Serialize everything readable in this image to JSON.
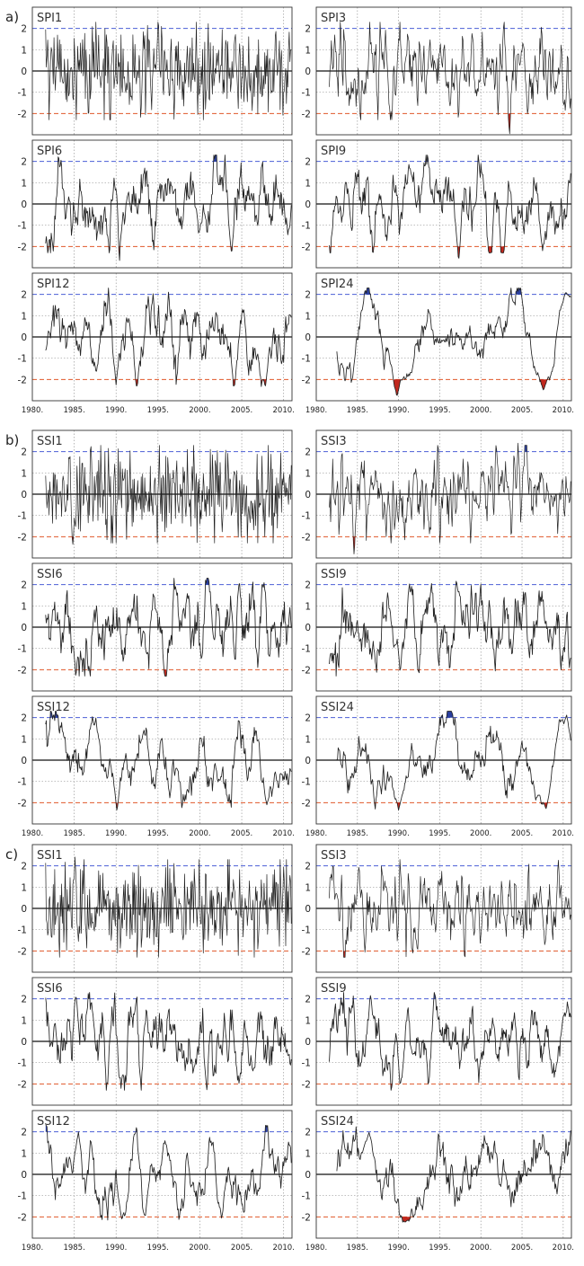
{
  "figure": {
    "threshold_upper_color": "#4b5fd6",
    "threshold_lower_color": "#e0572a",
    "line_color": "#222222",
    "extreme_fill_low": "#c0281e",
    "extreme_fill_high": "#2a3f9e",
    "grid": true
  },
  "groups": [
    {
      "label": "a)",
      "show_xlabels_on_last_row": true,
      "x_tick_labels": [
        "1980.",
        "1985.",
        "1990.",
        "1995.",
        "2000.",
        "2005.",
        "2010."
      ],
      "panels": [
        {
          "name": "SPI1",
          "seed": 11,
          "timescale": 1,
          "amp": 1.05
        },
        {
          "name": "SPI3",
          "seed": 23,
          "timescale": 3,
          "amp": 0.95,
          "events": [
            {
              "t": 1989.0,
              "v": -2.3
            },
            {
              "t": 2002.8,
              "v": 2.45
            },
            {
              "t": 2003.5,
              "v": -2.95
            },
            {
              "t": 2005.7,
              "v": -2.2
            }
          ]
        },
        {
          "name": "SPI6",
          "seed": 37,
          "timescale": 6,
          "amp": 1.0,
          "events": [
            {
              "t": 1990.4,
              "v": -2.8
            },
            {
              "t": 2003.0,
              "v": 2.3
            },
            {
              "t": 2003.8,
              "v": -2.3
            }
          ]
        },
        {
          "name": "SPI9",
          "seed": 41,
          "timescale": 9,
          "amp": 1.0,
          "events": [
            {
              "t": 1997.3,
              "v": -2.7
            },
            {
              "t": 2007.5,
              "v": -2.2
            }
          ]
        },
        {
          "name": "SPI12",
          "seed": 53,
          "timescale": 12,
          "amp": 1.0,
          "events": [
            {
              "t": 1990.0,
              "v": -2.25
            },
            {
              "t": 2007.8,
              "v": -2.4
            }
          ]
        },
        {
          "name": "SPI24",
          "seed": 67,
          "timescale": 24,
          "amp": 1.0,
          "events": [
            {
              "t": 1989.8,
              "v": -2.8
            },
            {
              "t": 2007.6,
              "v": -2.5
            },
            {
              "t": 2010.3,
              "v": 2.1
            }
          ]
        }
      ]
    },
    {
      "label": "b)",
      "show_xlabels_on_last_row": true,
      "x_tick_labels": [
        "1980.",
        "1985.",
        "1990.",
        "1995.",
        "2000.",
        "2005.",
        "2010."
      ],
      "panels": [
        {
          "name": "SSI1",
          "seed": 71,
          "timescale": 1,
          "amp": 1.05,
          "events": [
            {
              "t": 1984.5,
              "v": 2.5
            },
            {
              "t": 1984.8,
              "v": -2.6
            }
          ]
        },
        {
          "name": "SSI3",
          "seed": 83,
          "timescale": 3,
          "amp": 0.95,
          "events": [
            {
              "t": 1984.6,
              "v": -2.95
            },
            {
              "t": 2004.5,
              "v": 2.4
            }
          ]
        },
        {
          "name": "SSI6",
          "seed": 97,
          "timescale": 6,
          "amp": 1.0,
          "events": [
            {
              "t": 1985.2,
              "v": -2.5
            },
            {
              "t": 2004.7,
              "v": 2.2
            }
          ]
        },
        {
          "name": "SSI9",
          "seed": 101,
          "timescale": 9,
          "amp": 1.0,
          "events": [
            {
              "t": 1990.2,
              "v": -2.2
            }
          ]
        },
        {
          "name": "SSI12",
          "seed": 113,
          "timescale": 12,
          "amp": 1.0,
          "events": [
            {
              "t": 1990.1,
              "v": -2.4
            },
            {
              "t": 2008.0,
              "v": -2.1
            }
          ]
        },
        {
          "name": "SSI24",
          "seed": 127,
          "timescale": 24,
          "amp": 1.0,
          "events": [
            {
              "t": 1990.0,
              "v": -2.35
            },
            {
              "t": 2007.9,
              "v": -2.3
            },
            {
              "t": 2010.4,
              "v": 2.15
            }
          ]
        }
      ]
    },
    {
      "label": "c)",
      "show_xlabels_on_last_row": true,
      "x_tick_labels": [
        "1980.",
        "1985.",
        "1990.",
        "1995.",
        "2000.",
        "2005.",
        "2010."
      ],
      "panels": [
        {
          "name": "SSI1",
          "seed": 131,
          "timescale": 1,
          "amp": 1.05,
          "events": [
            {
              "t": 1985.1,
              "v": 2.5
            }
          ]
        },
        {
          "name": "SSI3",
          "seed": 139,
          "timescale": 3,
          "amp": 0.95,
          "events": [
            {
              "t": 1985.2,
              "v": 2.2
            },
            {
              "t": 1992.3,
              "v": -2.25
            }
          ]
        },
        {
          "name": "SSI6",
          "seed": 149,
          "timescale": 6,
          "amp": 1.0,
          "events": [
            {
              "t": 1985.2,
              "v": 2.1
            },
            {
              "t": 1990.6,
              "v": -2.3
            }
          ]
        },
        {
          "name": "SSI9",
          "seed": 151,
          "timescale": 9,
          "amp": 1.0,
          "events": [
            {
              "t": 1986.6,
              "v": 2.2
            },
            {
              "t": 1990.2,
              "v": -2.1
            }
          ]
        },
        {
          "name": "SSI12",
          "seed": 163,
          "timescale": 12,
          "amp": 1.0,
          "events": [
            {
              "t": 1985.5,
              "v": 2.0
            },
            {
              "t": 1990.7,
              "v": -2.2
            },
            {
              "t": 2002.6,
              "v": -2.1
            }
          ]
        },
        {
          "name": "SSI24",
          "seed": 173,
          "timescale": 24,
          "amp": 1.0,
          "events": [
            {
              "t": 1986.4,
              "v": 2.0
            },
            {
              "t": 1990.8,
              "v": -2.25
            }
          ]
        }
      ]
    }
  ],
  "chart_data": {
    "type": "line",
    "x_range": [
      1980,
      2011
    ],
    "ylim": [
      -3,
      3
    ],
    "y_ticks": [
      -2,
      -1,
      0,
      1,
      2
    ],
    "thresholds": [
      2,
      -2
    ],
    "grid": true,
    "note_series": "monthly index series per panel"
  }
}
